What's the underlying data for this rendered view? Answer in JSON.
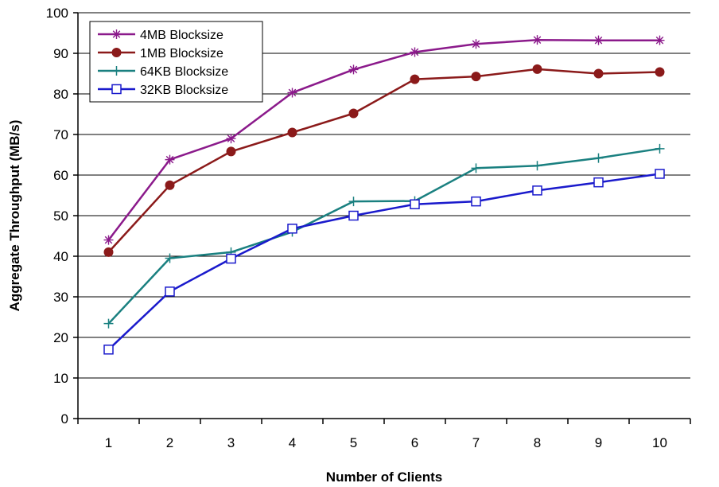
{
  "chart_data": {
    "type": "line",
    "title": "",
    "xlabel": "Number of Clients",
    "ylabel": "Aggregate Throughput (MB/s)",
    "x": [
      1,
      2,
      3,
      4,
      5,
      6,
      7,
      8,
      9,
      10
    ],
    "x_tick_labels": [
      "1",
      "2",
      "3",
      "4",
      "5",
      "6",
      "7",
      "8",
      "9",
      "10"
    ],
    "ylim": [
      0,
      100
    ],
    "y_ticks": [
      0,
      10,
      20,
      30,
      40,
      50,
      60,
      70,
      80,
      90,
      100
    ],
    "y_tick_labels": [
      "0",
      "10",
      "20",
      "30",
      "40",
      "50",
      "60",
      "70",
      "80",
      "90",
      "100"
    ],
    "grid": "horizontal",
    "legend_position": "top-left",
    "series": [
      {
        "name": "4MB Blocksize",
        "color": "#8B1A8B",
        "marker": "star",
        "values": [
          44,
          63.8,
          69,
          80.3,
          86,
          90.3,
          92.3,
          93.3,
          93.2,
          93.2
        ]
      },
      {
        "name": "1MB Blocksize",
        "color": "#8B1A1A",
        "marker": "circle",
        "values": [
          41,
          57.5,
          65.8,
          70.5,
          75.2,
          83.6,
          84.3,
          86.1,
          85,
          85.4
        ]
      },
      {
        "name": "64KB Blocksize",
        "color": "#1A8080",
        "marker": "plus",
        "values": [
          23.4,
          39.5,
          41,
          46,
          53.5,
          53.6,
          61.7,
          62.3,
          64.2,
          66.5
        ]
      },
      {
        "name": "32KB Blocksize",
        "color": "#1A1ACC",
        "marker": "square",
        "values": [
          17,
          31.3,
          39.4,
          46.8,
          50,
          52.8,
          53.5,
          56.2,
          58.2,
          60.3
        ]
      }
    ]
  }
}
